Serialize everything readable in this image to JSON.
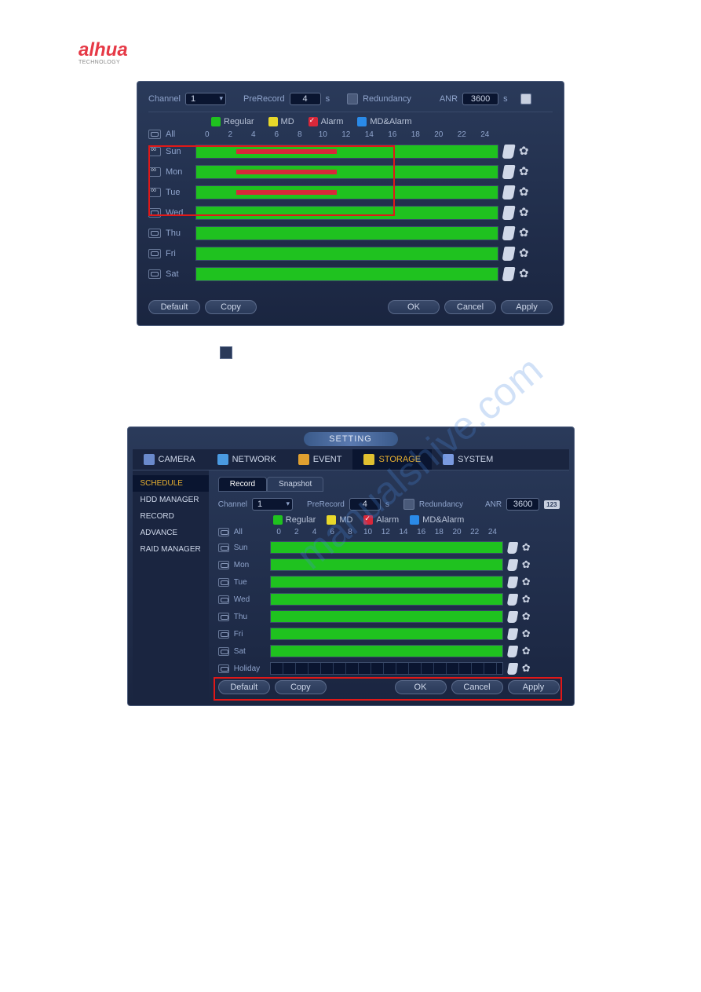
{
  "logo_text": "alhua",
  "logo_sub": "TECHNOLOGY",
  "hdr": {
    "channel_lbl": "Channel",
    "channel_val": "1",
    "prerecord_lbl": "PreRecord",
    "prerecord_val": "4",
    "prerecord_unit": "s",
    "redundancy_lbl": "Redundancy",
    "anr_lbl": "ANR",
    "anr_val": "3600",
    "anr_unit": "s"
  },
  "legend": {
    "regular": "Regular",
    "md": "MD",
    "alarm": "Alarm",
    "mdalarm": "MD&Alarm"
  },
  "hour_labels": [
    "0",
    "2",
    "4",
    "6",
    "8",
    "10",
    "12",
    "14",
    "16",
    "18",
    "20",
    "22",
    "24"
  ],
  "all_lbl": "All",
  "days": [
    {
      "name": "Sun",
      "linked": true,
      "green": true,
      "red": {
        "start": 3.2,
        "end": 11.2
      }
    },
    {
      "name": "Mon",
      "linked": true,
      "green": true,
      "red": {
        "start": 3.2,
        "end": 11.2
      }
    },
    {
      "name": "Tue",
      "linked": true,
      "green": true,
      "red": {
        "start": 3.2,
        "end": 11.2
      }
    },
    {
      "name": "Wed",
      "linked": false,
      "green": true
    },
    {
      "name": "Thu",
      "linked": false,
      "green": true
    },
    {
      "name": "Fri",
      "linked": false,
      "green": true
    },
    {
      "name": "Sat",
      "linked": false,
      "green": true
    }
  ],
  "btns": {
    "default": "Default",
    "copy": "Copy",
    "ok": "OK",
    "cancel": "Cancel",
    "apply": "Apply"
  },
  "panel2": {
    "title": "SETTING",
    "tabs": {
      "camera": "CAMERA",
      "network": "NETWORK",
      "event": "EVENT",
      "storage": "STORAGE",
      "system": "SYSTEM"
    },
    "side": [
      "SCHEDULE",
      "HDD MANAGER",
      "RECORD",
      "ADVANCE",
      "RAID MANAGER"
    ],
    "subtabs": {
      "record": "Record",
      "snapshot": "Snapshot"
    },
    "icon123": "123",
    "days": [
      {
        "name": "Sun",
        "green": true
      },
      {
        "name": "Mon",
        "green": true
      },
      {
        "name": "Tue",
        "green": true
      },
      {
        "name": "Wed",
        "green": true
      },
      {
        "name": "Thu",
        "green": true
      },
      {
        "name": "Fri",
        "green": true
      },
      {
        "name": "Sat",
        "green": true
      },
      {
        "name": "Holiday",
        "green": false
      }
    ]
  },
  "colors": {
    "green": "#1fc21f",
    "yellow": "#e8d82a",
    "red": "#d8283a",
    "blue": "#2a8ae8",
    "panel_bg": "#1a2540",
    "text": "#bac4d8",
    "accent": "#e8b030",
    "sel_border": "#e01818"
  },
  "fig1_selection": {
    "top_row": 0,
    "bottom_row": 2
  },
  "fig2_selection_row": 7,
  "watermark": "manualshive.com"
}
